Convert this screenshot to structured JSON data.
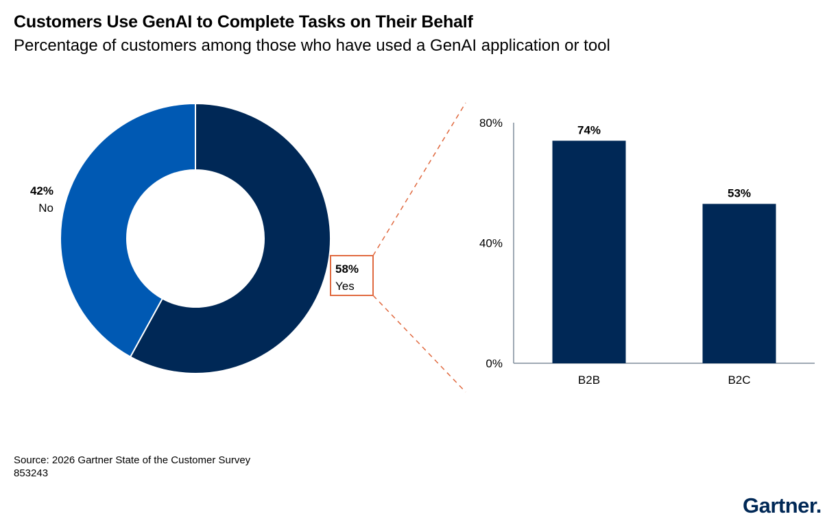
{
  "title": "Customers Use GenAI to Complete Tasks on Their Behalf",
  "subtitle": "Percentage of customers among those who have used a GenAI application or tool",
  "source": "Source: 2026 Gartner State of the Customer Survey",
  "code": "853243",
  "logo": "Gartner",
  "colors": {
    "dark_navy": "#002856",
    "blue": "#0059b3",
    "callout_orange": "#e0693f",
    "axis_gray": "#7f8c9a"
  },
  "chart_data": [
    {
      "type": "pie",
      "donut": true,
      "slices": [
        {
          "label": "Yes",
          "value": 58,
          "value_label": "58%",
          "color": "#002856"
        },
        {
          "label": "No",
          "value": 42,
          "value_label": "42%",
          "color": "#0059b3"
        }
      ]
    },
    {
      "type": "bar",
      "categories": [
        "B2B",
        "B2C"
      ],
      "values": [
        74,
        53
      ],
      "value_labels": [
        "74%",
        "53%"
      ],
      "ylim": [
        0,
        80
      ],
      "yticks": [
        0,
        40,
        80
      ],
      "ytick_labels": [
        "0%",
        "40%",
        "80%"
      ],
      "grid": false,
      "color": "#002856"
    }
  ]
}
